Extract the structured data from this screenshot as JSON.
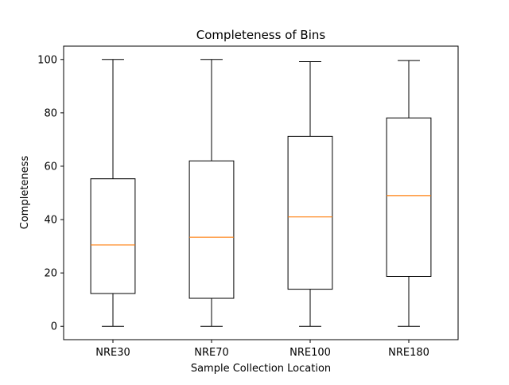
{
  "chart_data": {
    "type": "boxplot",
    "title": "Completeness of Bins",
    "xlabel": "Sample Collection Location",
    "ylabel": "Completeness",
    "ylim": [
      -5,
      105
    ],
    "yticks": [
      0,
      20,
      40,
      60,
      80,
      100
    ],
    "categories": [
      "NRE30",
      "NRE70",
      "NRE100",
      "NRE180"
    ],
    "boxes": [
      {
        "label": "NRE30",
        "whisker_low": 0,
        "q1": 12.3,
        "median": 30.5,
        "q3": 55.3,
        "whisker_high": 100
      },
      {
        "label": "NRE70",
        "whisker_low": 0,
        "q1": 10.5,
        "median": 33.4,
        "q3": 62.0,
        "whisker_high": 100
      },
      {
        "label": "NRE100",
        "whisker_low": 0,
        "q1": 13.9,
        "median": 41.0,
        "q3": 71.2,
        "whisker_high": 99.2
      },
      {
        "label": "NRE180",
        "whisker_low": 0,
        "q1": 18.7,
        "median": 49.0,
        "q3": 78.1,
        "whisker_high": 99.6
      }
    ],
    "grid": false,
    "colors": {
      "box": "#000000",
      "median": "#ff7f0e",
      "axes": "#000000",
      "background": "#ffffff"
    }
  }
}
